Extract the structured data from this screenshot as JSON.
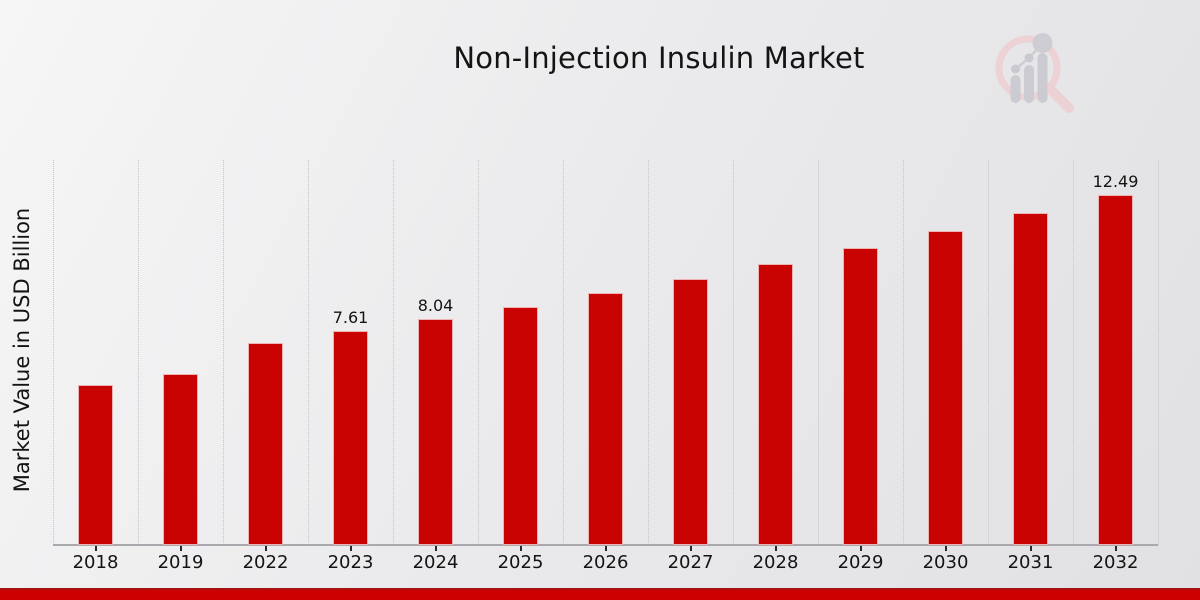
{
  "chart_data": {
    "type": "bar",
    "title": "Non-Injection Insulin Market",
    "ylabel": "Market Value in USD Billion",
    "xlabel": "",
    "categories": [
      "2018",
      "2019",
      "2022",
      "2023",
      "2024",
      "2025",
      "2026",
      "2027",
      "2028",
      "2029",
      "2030",
      "2031",
      "2032"
    ],
    "values": [
      5.7,
      6.09,
      7.2,
      7.61,
      8.04,
      8.48,
      8.98,
      9.48,
      10.01,
      10.58,
      11.19,
      11.83,
      12.49
    ],
    "data_labels": {
      "2023": "7.61",
      "2024": "8.04",
      "2032": "12.49"
    },
    "ylim": [
      0,
      13.7
    ],
    "grid": "vertical-only",
    "legend": "none"
  },
  "colors": {
    "bar": "#c90302",
    "footer_bar": "#cc0000",
    "footer_bar_edge": "#a81212",
    "text": "#141414",
    "logo_ring_pink": "#ecd2d4",
    "logo_bars_gray": "#cbcbd1"
  },
  "logo": {
    "icon": "magnifier-bar-chart-logo"
  }
}
